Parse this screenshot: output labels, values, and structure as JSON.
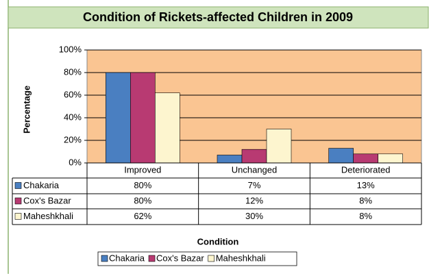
{
  "chart_data": {
    "type": "bar",
    "title": "Condition of Rickets-affected Children in 2009",
    "ylabel": "Percentage",
    "xlabel": "Condition",
    "categories": [
      "Improved",
      "Unchanged",
      "Deteriorated"
    ],
    "series": [
      {
        "name": "Chakaria",
        "color": "#4a7fc1",
        "values": [
          80,
          7,
          13
        ],
        "value_labels": [
          "80%",
          "7%",
          "13%"
        ]
      },
      {
        "name": "Cox's Bazar",
        "color": "#b83a72",
        "values": [
          80,
          12,
          8
        ],
        "value_labels": [
          "80%",
          "12%",
          "8%"
        ]
      },
      {
        "name": "Maheshkhali",
        "color": "#fdf5cf",
        "values": [
          62,
          30,
          8
        ],
        "value_labels": [
          "62%",
          "30%",
          "8%"
        ]
      }
    ],
    "ylim": [
      0,
      100
    ],
    "yticks": [
      {
        "value": 0,
        "label": "0%"
      },
      {
        "value": 20,
        "label": "20%"
      },
      {
        "value": 40,
        "label": "40%"
      },
      {
        "value": 60,
        "label": "60%"
      },
      {
        "value": 80,
        "label": "80%"
      },
      {
        "value": 100,
        "label": "100%"
      }
    ],
    "grid": true,
    "plot_background": "#fac592"
  }
}
